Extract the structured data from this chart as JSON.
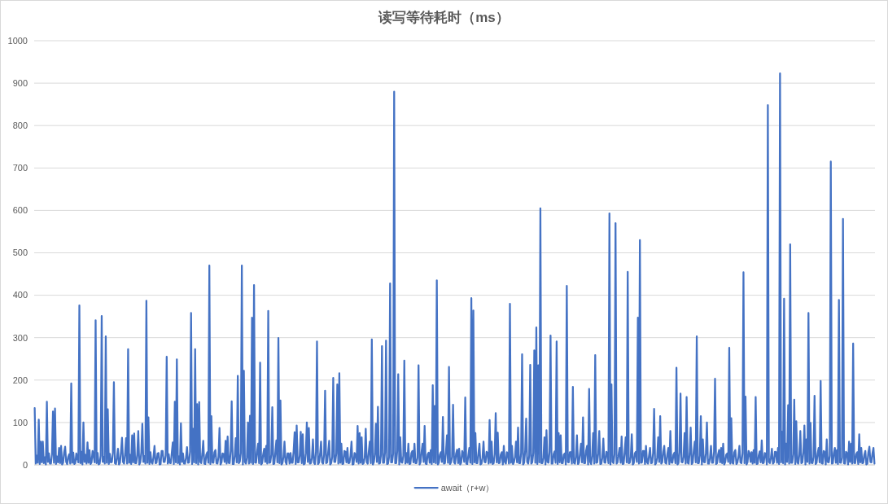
{
  "chart_data": {
    "type": "line",
    "title": "读写等待耗时（ms）",
    "categories": [
      null,
      null,
      null,
      null,
      null,
      null,
      null,
      null,
      null,
      null,
      null,
      null,
      null,
      null,
      null,
      null,
      null,
      null,
      null,
      null,
      null,
      null,
      null,
      null,
      null,
      null,
      null,
      null,
      null,
      null,
      null,
      null,
      null,
      null,
      null,
      null,
      null,
      null,
      null,
      null,
      null,
      null,
      null,
      null,
      null,
      null,
      null,
      null,
      null,
      null,
      null,
      null,
      null,
      null,
      null,
      null,
      null,
      null,
      null,
      null,
      null,
      null,
      null,
      null,
      null,
      null,
      null,
      null,
      null,
      null,
      null,
      null,
      null,
      null,
      null,
      null,
      null,
      null,
      null,
      null,
      null,
      null,
      null,
      null,
      null,
      null,
      null,
      null,
      null,
      null,
      null,
      null,
      null,
      null,
      null,
      null,
      null,
      null,
      null,
      null,
      null,
      null,
      null,
      null,
      null,
      null,
      null,
      null,
      null,
      null,
      null,
      null,
      null,
      null,
      null,
      null,
      null,
      null,
      null,
      null,
      null,
      null,
      null,
      null,
      null,
      null,
      null,
      null,
      null,
      null,
      null,
      null,
      null,
      null,
      null,
      null,
      null,
      null,
      null,
      null,
      null,
      null,
      null,
      null,
      null,
      null,
      null,
      null,
      null,
      null,
      null,
      null,
      null,
      null,
      null,
      null,
      null,
      null,
      null,
      null,
      null,
      null,
      null,
      null,
      null,
      null,
      null,
      null,
      null,
      null,
      null,
      null,
      null,
      null,
      null,
      null,
      null,
      null,
      null,
      null,
      null,
      null,
      null,
      null,
      null,
      null,
      null,
      null,
      null,
      null,
      null,
      null,
      null,
      null,
      null,
      null,
      null,
      null,
      null,
      null,
      null,
      null,
      null,
      null,
      null,
      null,
      null,
      null,
      null,
      null,
      null,
      null,
      null,
      null,
      null,
      null,
      null,
      null,
      null,
      null,
      null,
      null,
      null,
      null,
      null,
      null,
      null,
      null,
      null,
      null,
      null,
      null,
      null,
      null,
      null,
      null,
      null,
      null,
      null,
      null,
      null,
      null,
      null,
      null,
      null,
      null,
      null,
      null,
      null,
      null,
      null,
      null,
      null,
      null,
      null,
      null,
      null,
      null,
      null,
      null,
      null,
      null,
      null,
      null,
      null,
      null,
      null,
      null,
      null,
      null,
      null,
      null,
      null,
      null,
      null,
      null,
      null,
      null,
      null,
      null,
      null,
      null,
      null,
      null,
      null,
      null,
      null,
      null,
      null,
      null,
      null,
      null,
      null,
      null,
      null,
      null,
      null,
      null,
      null,
      null,
      null,
      null,
      null,
      null,
      null,
      null,
      null,
      null,
      null,
      null,
      null,
      null,
      null,
      null,
      null,
      null,
      null,
      null,
      null,
      null,
      null,
      null,
      null,
      null,
      null,
      null,
      null,
      null,
      null,
      null,
      null,
      null,
      null,
      null,
      null,
      null,
      null,
      null,
      null,
      null,
      null,
      null,
      null,
      null,
      null,
      null,
      null,
      null,
      null,
      null,
      null,
      null,
      null,
      null,
      null,
      null,
      null,
      null,
      null,
      null,
      null,
      null,
      null,
      null,
      null,
      null,
      null,
      null,
      null,
      null,
      null,
      null,
      null,
      null,
      null,
      null,
      null,
      null,
      null,
      null,
      null,
      null,
      null,
      null,
      null,
      null,
      null,
      null,
      null,
      null,
      null,
      null,
      null,
      null,
      null,
      null,
      null,
      null,
      null,
      null,
      null,
      null,
      null,
      null,
      null,
      null,
      null,
      null,
      null,
      null,
      null,
      null,
      null,
      null,
      null,
      null,
      null,
      null,
      null,
      null,
      null,
      null,
      null,
      null,
      null,
      null,
      null,
      null,
      null,
      null,
      null,
      null,
      null,
      null,
      null,
      null,
      null,
      null,
      null,
      null,
      null,
      null,
      null,
      null,
      null,
      null,
      null,
      null,
      null,
      null,
      null,
      null,
      null,
      null,
      null,
      null,
      null,
      null,
      null,
      null,
      null,
      null,
      null,
      null,
      null,
      null,
      null,
      null,
      null,
      null,
      null,
      null,
      null,
      null,
      null,
      null,
      null,
      null,
      null,
      null,
      null,
      null,
      null,
      null,
      null,
      null,
      null,
      null,
      null,
      null,
      null,
      null,
      null,
      null,
      null,
      null,
      null,
      null,
      null,
      null,
      null,
      null,
      null,
      null,
      null,
      null,
      null,
      null,
      null,
      null,
      null,
      null,
      null,
      null,
      null,
      null,
      null,
      null,
      null,
      null,
      null,
      null,
      null,
      null,
      null,
      null,
      null,
      null,
      null,
      null,
      null,
      null,
      null,
      null,
      null,
      null,
      null,
      null,
      null,
      null,
      null,
      null,
      null,
      null,
      null,
      null,
      null,
      null,
      null,
      null,
      null,
      null,
      null,
      null,
      null,
      null,
      null,
      null,
      null,
      null,
      null,
      null,
      null,
      null,
      null,
      null,
      null,
      null,
      null,
      null,
      null,
      null,
      null,
      null,
      null,
      null,
      null,
      null,
      null,
      null,
      null,
      null,
      null,
      null,
      null,
      null,
      null,
      null,
      null,
      null,
      null,
      null,
      null,
      null,
      null,
      null,
      null,
      null,
      null,
      null,
      null,
      null,
      null,
      null,
      null,
      null,
      null,
      null,
      null,
      null,
      null,
      null,
      null,
      null,
      null,
      null,
      null,
      null,
      null,
      null,
      null,
      null,
      null,
      null,
      null,
      null,
      null,
      null,
      null,
      null,
      null,
      null,
      null,
      null,
      null,
      null,
      null,
      null,
      null,
      null,
      null,
      null,
      null,
      null,
      null,
      null,
      null,
      null,
      null,
      null,
      null,
      null,
      null,
      null,
      null,
      null,
      null,
      null,
      null,
      null,
      null,
      null,
      null,
      null,
      null,
      null,
      null,
      null,
      null,
      null,
      null,
      null,
      null,
      null,
      null,
      null,
      null,
      null,
      null,
      null,
      null,
      null,
      null,
      null,
      null,
      null,
      null,
      null,
      null,
      null,
      null,
      null,
      null,
      null,
      null,
      null,
      null,
      null,
      null,
      null,
      null,
      null,
      null,
      null,
      null,
      null,
      null,
      null,
      null,
      null,
      null,
      null,
      null,
      null,
      null,
      null,
      null,
      null,
      null,
      null,
      null,
      null,
      null,
      null,
      null,
      null,
      null,
      null,
      null,
      null,
      null,
      null,
      null,
      null,
      null,
      null,
      null,
      null,
      null,
      null,
      null,
      null,
      null,
      null,
      null,
      null,
      null,
      null,
      null,
      null,
      null,
      null,
      null,
      null,
      null,
      null,
      null,
      null,
      null,
      null,
      null,
      null,
      null,
      null,
      null,
      null,
      null,
      null,
      null,
      null,
      null,
      null,
      null,
      null,
      null,
      null,
      null,
      null,
      null,
      null,
      null,
      null,
      null,
      null,
      null,
      null,
      null,
      null,
      null,
      null,
      null,
      null,
      null,
      null,
      null,
      null,
      null,
      null,
      null,
      null,
      null,
      null,
      null,
      null,
      null,
      null,
      null,
      null,
      null,
      null,
      null,
      null,
      null,
      null,
      null,
      null,
      null,
      null,
      null,
      null,
      null,
      null,
      null,
      null,
      null,
      null,
      null,
      null
    ],
    "series": [
      {
        "name": "await（r+w）",
        "color": "#4472c4",
        "values": [
          134,
          3,
          22,
          5,
          107,
          2,
          55,
          6,
          55,
          4,
          18,
          1,
          149,
          7,
          27,
          3,
          3,
          24,
          126,
          5,
          133,
          2,
          20,
          6,
          40,
          4,
          45,
          1,
          5,
          30,
          43,
          7,
          2,
          19,
          25,
          3,
          192,
          5,
          29,
          2,
          4,
          27,
          16,
          6,
          376,
          4,
          31,
          1,
          100,
          7,
          24,
          3,
          53,
          5,
          35,
          2,
          6,
          33,
          22,
          6,
          341,
          4,
          28,
          1,
          3,
          22,
          351,
          7,
          19,
          3,
          303,
          5,
          131,
          2,
          26,
          6,
          7,
          28,
          195,
          4,
          2,
          17,
          38,
          1,
          5,
          31,
          64,
          7,
          3,
          25,
          63,
          3,
          273,
          5,
          24,
          2,
          70,
          6,
          74,
          4,
          4,
          24,
          80,
          1,
          6,
          30,
          97,
          7,
          21,
          3,
          387,
          5,
          112,
          2,
          30,
          6,
          3,
          19,
          45,
          4,
          5,
          27,
          28,
          1,
          2,
          33,
          33,
          7,
          7,
          22,
          255,
          3,
          25,
          5,
          4,
          28,
          53,
          2,
          149,
          6,
          249,
          4,
          20,
          1,
          98,
          7,
          27,
          3,
          3,
          17,
          42,
          5,
          6,
          31,
          358,
          2,
          85,
          6,
          273,
          4,
          143,
          1,
          148,
          7,
          4,
          25,
          57,
          3,
          2,
          24,
          30,
          5,
          470,
          2,
          115,
          6,
          5,
          30,
          35,
          4,
          3,
          19,
          87,
          1,
          6,
          27,
          26,
          7,
          57,
          3,
          67,
          5,
          4,
          33,
          150,
          2,
          2,
          22,
          63,
          6,
          210,
          4,
          8,
          28,
          470,
          1,
          222,
          7,
          3,
          17,
          100,
          3,
          116,
          5,
          347,
          2,
          424,
          6,
          5,
          31,
          50,
          4,
          241,
          1,
          4,
          25,
          38,
          7,
          45,
          3,
          363,
          5,
          6,
          24,
          136,
          2,
          3,
          30,
          58,
          6,
          299,
          4,
          152,
          1,
          4,
          19,
          55,
          7,
          2,
          27,
          27,
          3,
          28,
          5,
          5,
          33,
          77,
          2,
          93,
          6,
          6,
          22,
          78,
          4,
          72,
          1,
          3,
          28,
          100,
          7,
          87,
          3,
          4,
          17,
          60,
          5,
          2,
          31,
          291,
          2,
          5,
          25,
          55,
          6,
          3,
          24,
          175,
          4,
          6,
          30,
          57,
          1,
          4,
          19,
          205,
          7,
          7,
          27,
          190,
          3,
          216,
          5,
          50,
          2,
          3,
          33,
          31,
          6,
          40,
          4,
          5,
          22,
          55,
          1,
          2,
          28,
          24,
          7,
          92,
          3,
          75,
          5,
          65,
          2,
          4,
          17,
          85,
          6,
          3,
          31,
          55,
          4,
          296,
          1,
          6,
          25,
          97,
          7,
          137,
          3,
          4,
          24,
          280,
          5,
          5,
          30,
          293,
          2,
          3,
          19,
          428,
          6,
          6,
          27,
          880,
          4,
          4,
          33,
          214,
          1,
          65,
          7,
          5,
          22,
          246,
          3,
          28,
          5,
          50,
          2,
          3,
          28,
          33,
          6,
          50,
          4,
          4,
          17,
          235,
          1,
          6,
          31,
          50,
          7,
          92,
          3,
          2,
          25,
          29,
          5,
          35,
          2,
          188,
          6,
          139,
          4,
          435,
          1,
          5,
          24,
          30,
          7,
          113,
          3,
          4,
          30,
          70,
          5,
          231,
          2,
          6,
          19,
          142,
          6,
          3,
          27,
          36,
          4,
          38,
          1,
          5,
          33,
          25,
          7,
          159,
          3,
          2,
          22,
          40,
          5,
          393,
          2,
          364,
          6,
          75,
          4,
          4,
          28,
          50,
          1,
          3,
          17,
          55,
          7,
          6,
          31,
          28,
          3,
          106,
          5,
          55,
          2,
          4,
          25,
          122,
          6,
          76,
          4,
          5,
          24,
          30,
          1,
          45,
          7,
          3,
          30,
          26,
          3,
          380,
          5,
          45,
          2,
          6,
          19,
          55,
          6,
          88,
          4,
          4,
          27,
          261,
          1,
          5,
          33,
          109,
          7,
          3,
          22,
          236,
          3,
          6,
          28,
          270,
          5,
          324,
          2,
          235,
          6,
          605,
          4,
          4,
          17,
          65,
          1,
          82,
          7,
          5,
          31,
          305,
          3,
          3,
          25,
          32,
          5,
          291,
          2,
          75,
          6,
          70,
          4,
          4,
          24,
          27,
          1,
          422,
          7,
          6,
          30,
          30,
          3,
          184,
          5,
          3,
          19,
          70,
          2,
          5,
          27,
          50,
          6,
          112,
          4,
          4,
          33,
          45,
          1,
          179,
          7,
          2,
          22,
          75,
          3,
          259,
          5,
          6,
          28,
          80,
          2,
          3,
          17,
          62,
          6,
          5,
          31,
          28,
          4,
          593,
          1,
          190,
          7,
          4,
          25,
          570,
          3,
          6,
          24,
          40,
          5,
          67,
          2,
          3,
          30,
          65,
          6,
          455,
          4,
          5,
          19,
          72,
          1,
          4,
          27,
          31,
          7,
          347,
          3,
          530,
          5,
          6,
          33,
          33,
          2,
          45,
          6,
          3,
          22,
          40,
          4,
          5,
          28,
          132,
          1,
          4,
          17,
          65,
          7,
          115,
          3,
          6,
          31,
          45,
          5,
          3,
          25,
          40,
          2,
          80,
          6,
          5,
          24,
          29,
          4,
          229,
          1,
          4,
          30,
          168,
          7,
          6,
          19,
          75,
          3,
          160,
          5,
          3,
          27,
          88,
          2,
          5,
          33,
          55,
          6,
          303,
          4,
          4,
          22,
          115,
          1,
          60,
          7,
          6,
          28,
          100,
          3,
          3,
          17,
          45,
          5,
          5,
          31,
          203,
          2,
          4,
          25,
          35,
          6,
          40,
          4,
          50,
          1,
          6,
          24,
          27,
          7,
          276,
          3,
          110,
          5,
          3,
          30,
          35,
          2,
          5,
          19,
          45,
          6,
          4,
          27,
          454,
          4,
          161,
          1,
          6,
          33,
          28,
          7,
          30,
          3,
          35,
          5,
          160,
          2,
          3,
          22,
          32,
          6,
          58,
          4,
          5,
          28,
          26,
          1,
          848,
          7,
          4,
          17,
          38,
          3,
          6,
          31,
          30,
          5,
          40,
          2,
          923,
          6,
          78,
          4,
          392,
          1,
          50,
          7,
          141,
          3,
          520,
          5,
          5,
          25,
          154,
          2,
          103,
          6,
          3,
          24,
          80,
          4,
          6,
          30,
          93,
          1,
          60,
          7,
          358,
          3,
          99,
          5,
          4,
          19,
          163,
          2,
          5,
          27,
          40,
          6,
          198,
          4,
          3,
          33,
          30,
          1,
          60,
          7,
          6,
          22,
          715,
          3,
          4,
          28,
          40,
          5,
          35,
          2,
          389,
          6,
          5,
          17,
          580,
          4,
          3,
          31,
          28,
          1,
          55,
          7,
          50,
          3,
          286,
          5,
          4,
          25,
          30,
          2,
          72,
          6,
          40,
          4,
          5,
          24,
          33,
          1,
          3,
          30,
          43,
          7,
          6,
          27,
          40,
          3
        ]
      }
    ],
    "ylim": [
      0,
      1000
    ],
    "yticks": [
      0,
      100,
      200,
      300,
      400,
      500,
      600,
      700,
      800,
      900,
      1000
    ],
    "grid": "y",
    "legend": "bottom",
    "tick_labels": "y"
  }
}
